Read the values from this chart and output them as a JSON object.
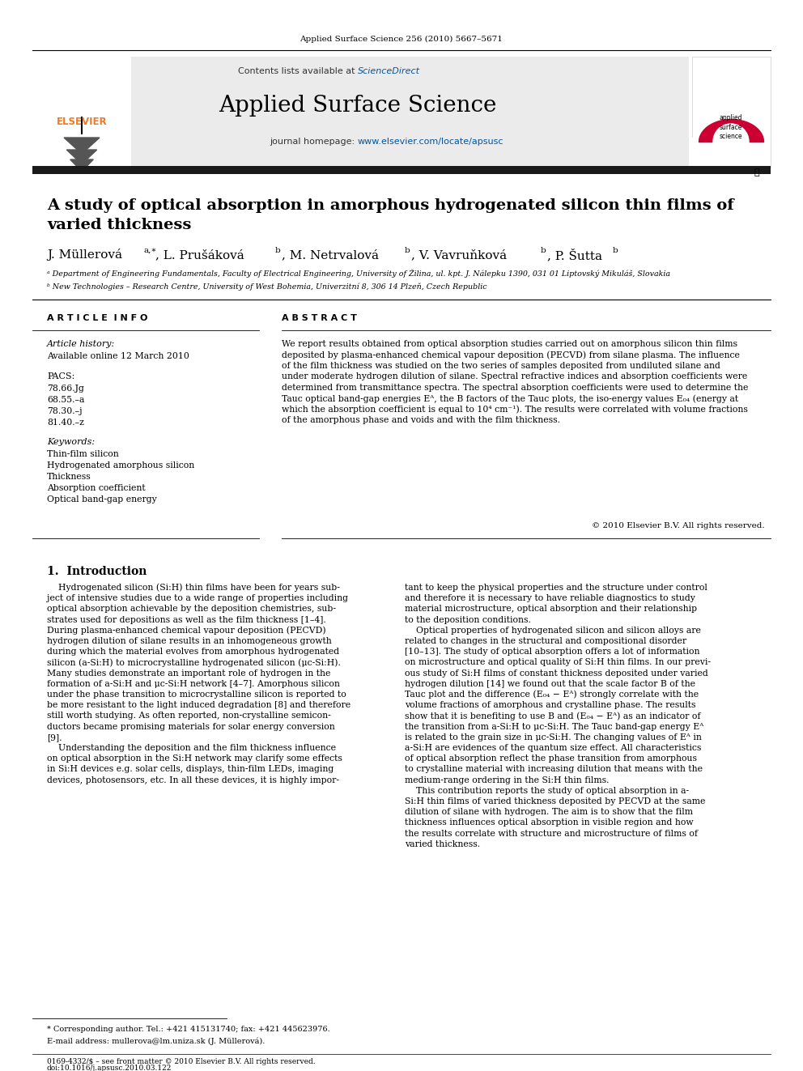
{
  "journal_header": "Applied Surface Science 256 (2010) 5667–5671",
  "journal_name": "Applied Surface Science",
  "contents_text": "Contents lists available at ScienceDirect",
  "journal_url": "journal homepage: www.elsevier.com/locate/apsusc",
  "paper_title_line1": "A study of optical absorption in amorphous hydrogenated silicon thin films of",
  "paper_title_line2": "varied thickness",
  "affil_a": "ᵃ Department of Engineering Fundamentals, Faculty of Electrical Engineering, University of Žilina, ul. kpt. J. Nálepku 1390, 031 01 Liptovský Mikuláš, Slovakia",
  "affil_b": "ᵇ New Technologies – Research Centre, University of West Bohemia, Univerzitní 8, 306 14 Plzeň, Czech Republic",
  "article_info_header": "A R T I C L E  I N F O",
  "abstract_header": "A B S T R A C T",
  "article_history_label": "Article history:",
  "article_history_date": "Available online 12 March 2010",
  "pacs_label": "PACS:",
  "pacs_codes": [
    "78.66.Jg",
    "68.55.–a",
    "78.30.–j",
    "81.40.–z"
  ],
  "keywords_label": "Keywords:",
  "keywords": [
    "Thin-film silicon",
    "Hydrogenated amorphous silicon",
    "Thickness",
    "Absorption coefficient",
    "Optical band-gap energy"
  ],
  "abstract_lines": [
    "We report results obtained from optical absorption studies carried out on amorphous silicon thin films",
    "deposited by plasma-enhanced chemical vapour deposition (PECVD) from silane plasma. The influence",
    "of the film thickness was studied on the two series of samples deposited from undiluted silane and",
    "under moderate hydrogen dilution of silane. Spectral refractive indices and absorption coefficients were",
    "determined from transmittance spectra. The spectral absorption coefficients were used to determine the",
    "Tauc optical band-gap energies Eᴬ, the B factors of the Tauc plots, the iso-energy values E₀₄ (energy at",
    "which the absorption coefficient is equal to 10⁴ cm⁻¹). The results were correlated with volume fractions",
    "of the amorphous phase and voids and with the film thickness."
  ],
  "copyright": "© 2010 Elsevier B.V. All rights reserved.",
  "section1_header": "1.  Introduction",
  "intro_left_lines": [
    "    Hydrogenated silicon (Si:H) thin films have been for years sub-",
    "ject of intensive studies due to a wide range of properties including",
    "optical absorption achievable by the deposition chemistries, sub-",
    "strates used for depositions as well as the film thickness [1–4].",
    "During plasma-enhanced chemical vapour deposition (PECVD)",
    "hydrogen dilution of silane results in an inhomogeneous growth",
    "during which the material evolves from amorphous hydrogenated",
    "silicon (a-Si:H) to microcrystalline hydrogenated silicon (μc-Si:H).",
    "Many studies demonstrate an important role of hydrogen in the",
    "formation of a-Si:H and μc-Si:H network [4–7]. Amorphous silicon",
    "under the phase transition to microcrystalline silicon is reported to",
    "be more resistant to the light induced degradation [8] and therefore",
    "still worth studying. As often reported, non-crystalline semicon-",
    "ductors became promising materials for solar energy conversion",
    "[9].",
    "    Understanding the deposition and the film thickness influence",
    "on optical absorption in the Si:H network may clarify some effects",
    "in Si:H devices e.g. solar cells, displays, thin-film LEDs, imaging",
    "devices, photosensors, etc. In all these devices, it is highly impor-"
  ],
  "intro_right_lines": [
    "tant to keep the physical properties and the structure under control",
    "and therefore it is necessary to have reliable diagnostics to study",
    "material microstructure, optical absorption and their relationship",
    "to the deposition conditions.",
    "    Optical properties of hydrogenated silicon and silicon alloys are",
    "related to changes in the structural and compositional disorder",
    "[10–13]. The study of optical absorption offers a lot of information",
    "on microstructure and optical quality of Si:H thin films. In our previ-",
    "ous study of Si:H films of constant thickness deposited under varied",
    "hydrogen dilution [14] we found out that the scale factor B of the",
    "Tauc plot and the difference (E₀₄ − Eᴬ) strongly correlate with the",
    "volume fractions of amorphous and crystalline phase. The results",
    "show that it is benefiting to use B and (E₀₄ − Eᴬ) as an indicator of",
    "the transition from a-Si:H to μc-Si:H. The Tauc band-gap energy Eᴬ",
    "is related to the grain size in μc-Si:H. The changing values of Eᴬ in",
    "a-Si:H are evidences of the quantum size effect. All characteristics",
    "of optical absorption reflect the phase transition from amorphous",
    "to crystalline material with increasing dilution that means with the",
    "medium-range ordering in the Si:H thin films.",
    "    This contribution reports the study of optical absorption in a-",
    "Si:H thin films of varied thickness deposited by PECVD at the same",
    "dilution of silane with hydrogen. The aim is to show that the film",
    "thickness influences optical absorption in visible region and how",
    "the results correlate with structure and microstructure of films of",
    "varied thickness."
  ],
  "footnote_star": "* Corresponding author. Tel.: +421 415131740; fax: +421 445623976.",
  "footnote_email": "E-mail address: mullerova@lm.uniza.sk (J. Müllerová).",
  "footer_left": "0169-4332/$ – see front matter © 2010 Elsevier B.V. All rights reserved.",
  "footer_doi": "doi:10.1016/j.apsusc.2010.03.122",
  "bg_color": "#ffffff",
  "header_bg": "#e8e8e8",
  "black_bar_color": "#1a1a1a",
  "elsevier_orange": "#f47920",
  "sciencedirect_blue": "#0055a5",
  "link_blue": "#0055a5",
  "text_color": "#000000",
  "red_accent": "#cc0033"
}
